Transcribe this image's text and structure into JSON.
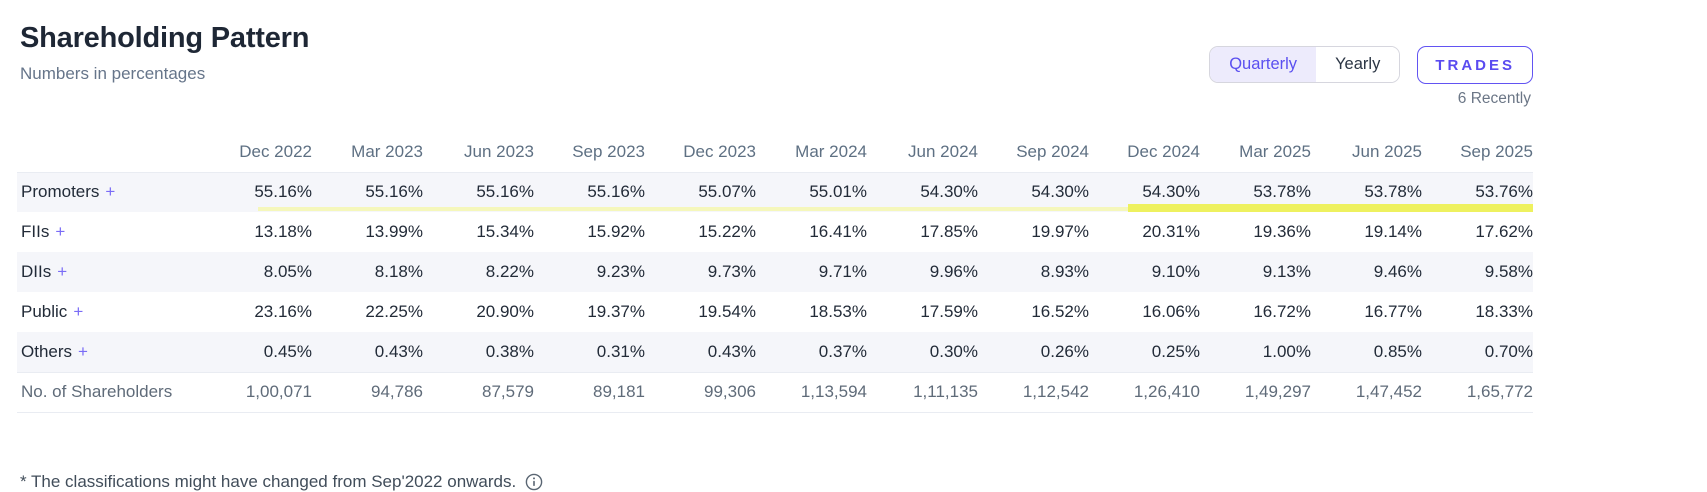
{
  "page": {
    "title": "Shareholding Pattern",
    "subtitle": "Numbers in percentages"
  },
  "controls": {
    "period_toggle": {
      "options": [
        "Quarterly",
        "Yearly"
      ],
      "selected": "Quarterly"
    },
    "trades_button_label": "TRADES",
    "trades_recent_note": "6 Recently"
  },
  "table": {
    "expand_glyph": "+",
    "columns": [
      "Dec 2022",
      "Mar 2023",
      "Jun 2023",
      "Sep 2023",
      "Dec 2023",
      "Mar 2024",
      "Jun 2024",
      "Sep 2024",
      "Dec 2024",
      "Mar 2025",
      "Jun 2025",
      "Sep 2025"
    ],
    "rows": [
      {
        "label": "Promoters",
        "expandable": true,
        "highlight": true,
        "values": [
          "55.16%",
          "55.16%",
          "55.16%",
          "55.16%",
          "55.07%",
          "55.01%",
          "54.30%",
          "54.30%",
          "54.30%",
          "53.78%",
          "53.78%",
          "53.76%"
        ]
      },
      {
        "label": "FIIs",
        "expandable": true,
        "values": [
          "13.18%",
          "13.99%",
          "15.34%",
          "15.92%",
          "15.22%",
          "16.41%",
          "17.85%",
          "19.97%",
          "20.31%",
          "19.36%",
          "19.14%",
          "17.62%"
        ]
      },
      {
        "label": "DIIs",
        "expandable": true,
        "values": [
          "8.05%",
          "8.18%",
          "8.22%",
          "9.23%",
          "9.73%",
          "9.71%",
          "9.96%",
          "8.93%",
          "9.10%",
          "9.13%",
          "9.46%",
          "9.58%"
        ]
      },
      {
        "label": "Public",
        "expandable": true,
        "values": [
          "23.16%",
          "22.25%",
          "20.90%",
          "19.37%",
          "19.54%",
          "18.53%",
          "17.59%",
          "16.52%",
          "16.06%",
          "16.72%",
          "16.77%",
          "18.33%"
        ]
      },
      {
        "label": "Others",
        "expandable": true,
        "values": [
          "0.45%",
          "0.43%",
          "0.38%",
          "0.31%",
          "0.43%",
          "0.37%",
          "0.30%",
          "0.26%",
          "0.25%",
          "1.00%",
          "0.85%",
          "0.70%"
        ]
      },
      {
        "label": "No. of Shareholders",
        "expandable": false,
        "muted": true,
        "values": [
          "1,00,071",
          "94,786",
          "87,579",
          "89,181",
          "99,306",
          "1,13,594",
          "1,11,135",
          "1,12,542",
          "1,26,410",
          "1,49,297",
          "1,47,452",
          "1,65,772"
        ]
      }
    ]
  },
  "footnote": {
    "text": "* The classifications might have changed from Sep'2022 onwards."
  },
  "colors": {
    "accent_purple": "#5a4bf0",
    "toggle_selected_bg": "#edebfc",
    "row_stripe": "#f5f6fa",
    "highlight_yellow_bright": "#eef15f",
    "highlight_yellow_pale": "#f5f7bb",
    "header_text": "#5e7083",
    "body_text": "#222b38"
  }
}
